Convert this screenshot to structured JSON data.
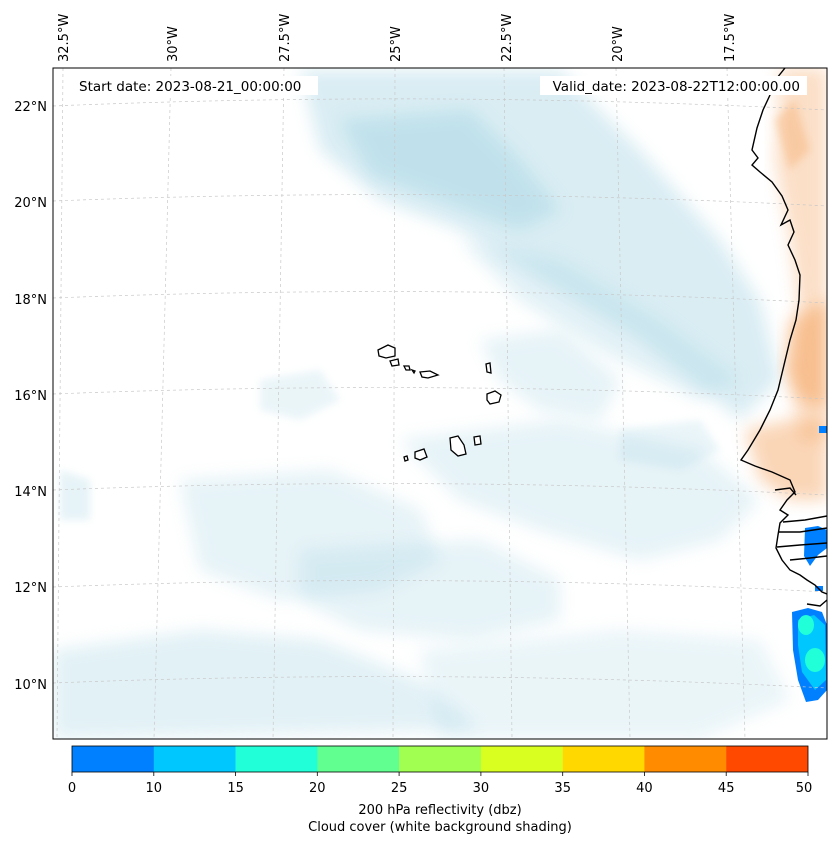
{
  "header": {
    "start_date": "Start date: 2023-08-21_00:00:00",
    "valid_date": "Valid_date: 2023-08-22T12:00:00.00"
  },
  "map": {
    "lon_labels": [
      "32.5°W",
      "30°W",
      "27.5°W",
      "25°W",
      "22.5°W",
      "20°W",
      "17.5°W"
    ],
    "lat_labels": [
      "22°N",
      "20°N",
      "18°N",
      "16°N",
      "14°N",
      "12°N",
      "10°N"
    ],
    "land_color": "#ffffff",
    "cloud_color": "#add8e6",
    "dust_color": "#f4a460",
    "coast_color": "#000000"
  },
  "colorbar": {
    "ticks": [
      "0",
      "10",
      "15",
      "20",
      "25",
      "30",
      "35",
      "40",
      "45",
      "50"
    ],
    "colors": [
      "#0080ff",
      "#00c8ff",
      "#20ffd8",
      "#60ff90",
      "#a0ff50",
      "#d8ff20",
      "#ffd800",
      "#ff8c00",
      "#ff4800"
    ],
    "label_line1": "200 hPa reflectivity (dbz)",
    "label_line2": "Cloud cover (white background shading)"
  }
}
